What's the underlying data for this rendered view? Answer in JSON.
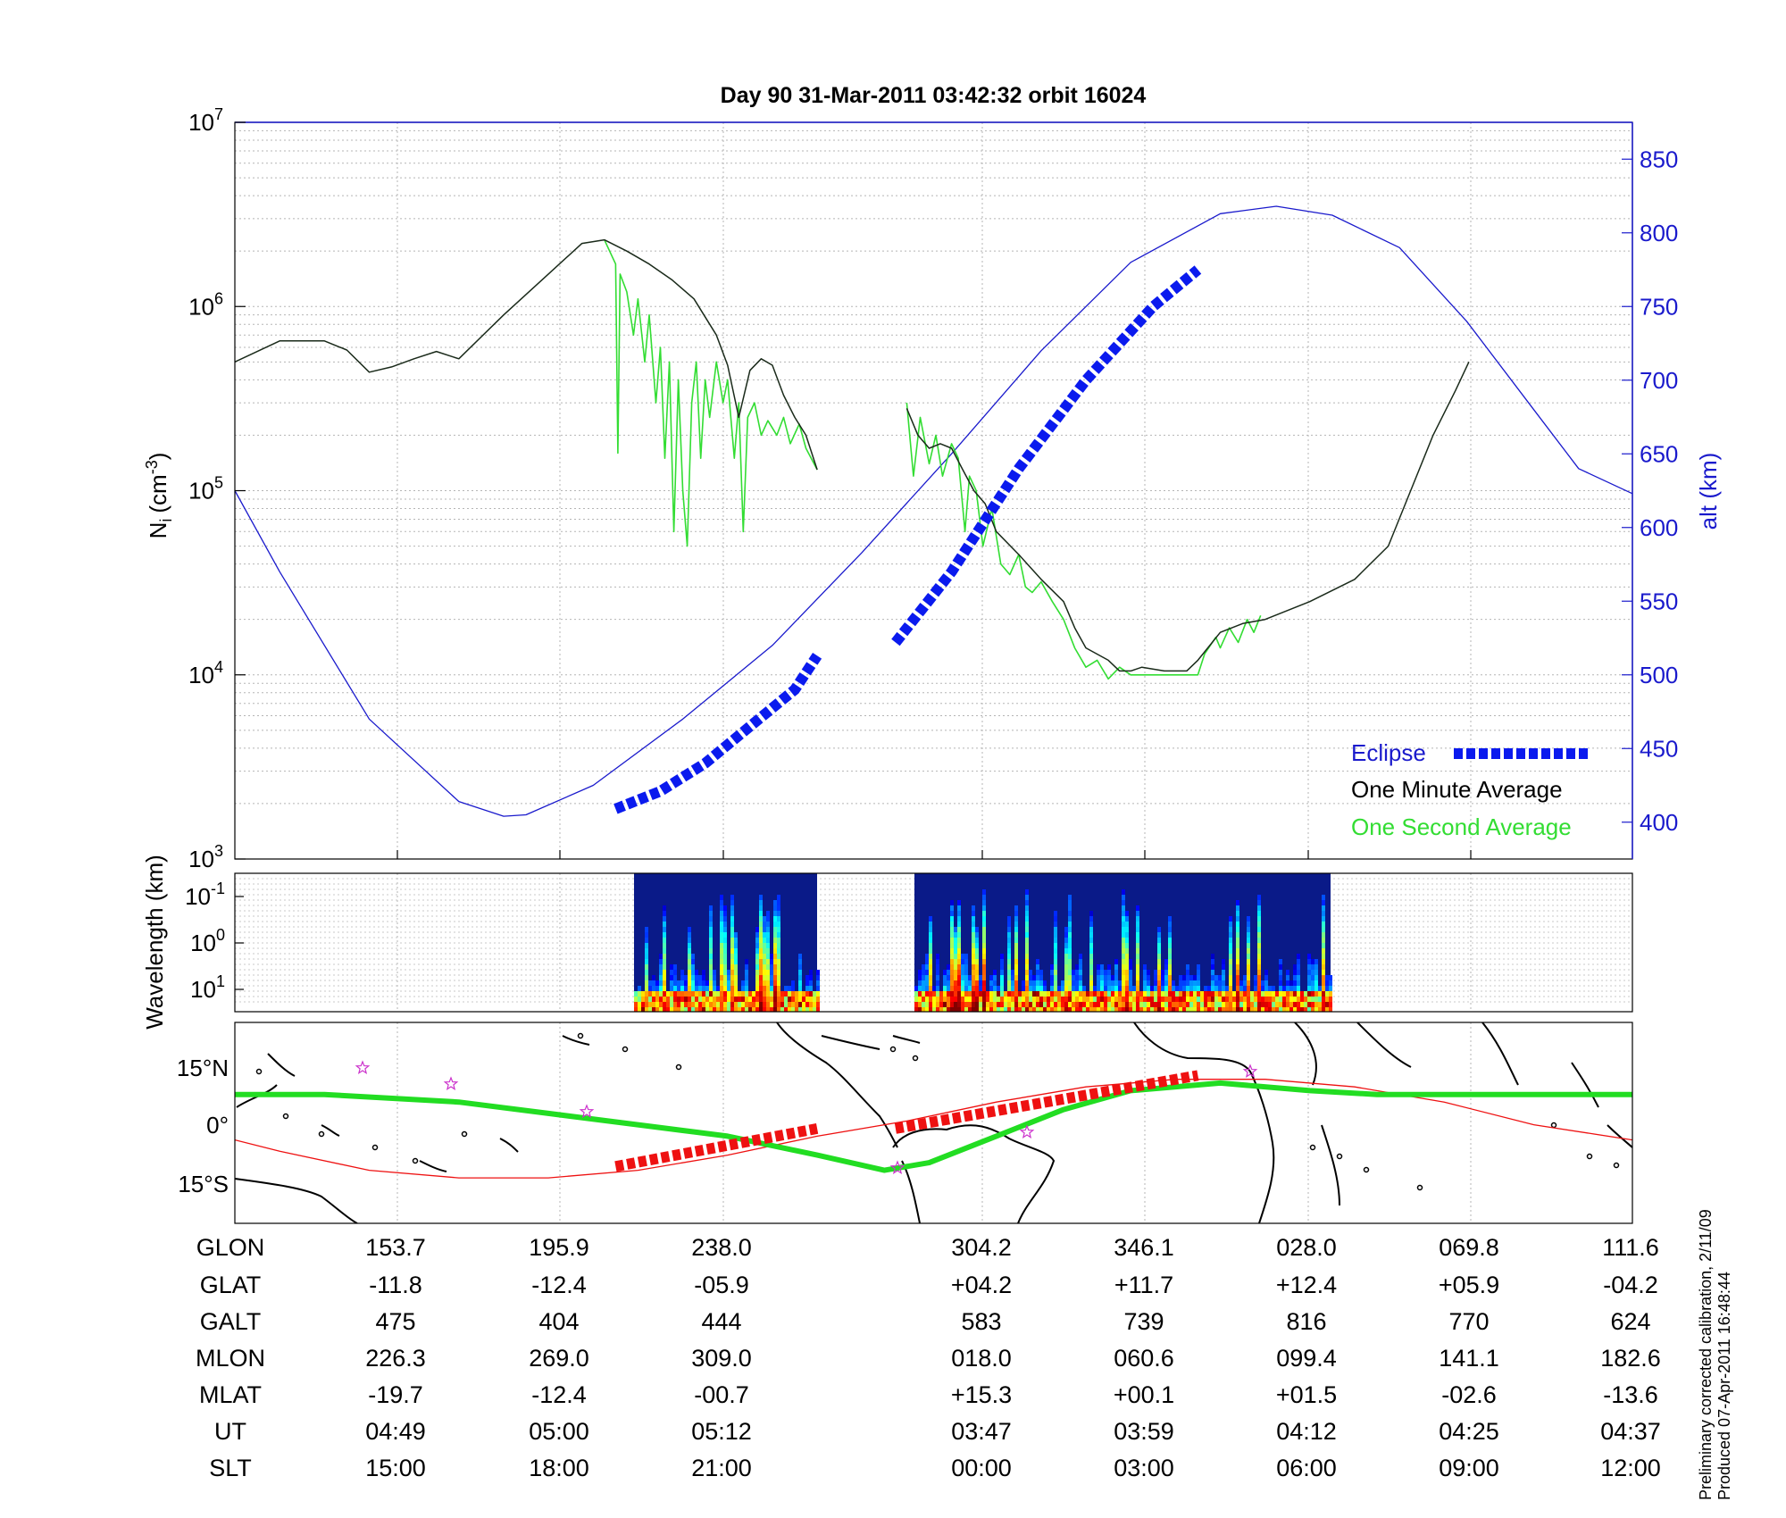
{
  "title": "Day 90  31-Mar-2011 03:42:32   orbit 16024",
  "ylabel_left_main": "N",
  "ylabel_left_sub": "i",
  "ylabel_left_unit": "(cm",
  "ylabel_left_exp": "-3",
  "ylabel_left_close": ")",
  "ylabel_right": "alt (km)",
  "spec_ylabel": "Wavelength (km)",
  "note_line1": "Preliminary corrected calibration, 2/11/09",
  "note_line2": "Produced 07-Apr-2011 16:48:44",
  "colors": {
    "alt": "#1a1acc",
    "eclipse": "#0a1aee",
    "minute": "#1a2a1a",
    "second": "#33dd33",
    "track_red": "#ee1111",
    "track_green": "#22dd22",
    "coast": "#000000",
    "star": "#cc33cc"
  },
  "legend": [
    {
      "label": "Eclipse",
      "color": "#1a1acc"
    },
    {
      "label": "One Minute Average",
      "color": "#000000"
    },
    {
      "label": "One Second Average",
      "color": "#33dd33"
    }
  ],
  "ni_ticks": [
    {
      "base": "10",
      "exp": "3"
    },
    {
      "base": "10",
      "exp": "4"
    },
    {
      "base": "10",
      "exp": "5"
    },
    {
      "base": "10",
      "exp": "6"
    },
    {
      "base": "10",
      "exp": "7"
    }
  ],
  "alt_ticks": [
    "400",
    "450",
    "500",
    "550",
    "600",
    "650",
    "700",
    "750",
    "800",
    "850"
  ],
  "wl_ticks": [
    {
      "base": "10",
      "exp": "-1"
    },
    {
      "base": "10",
      "exp": "0"
    },
    {
      "base": "10",
      "exp": "1"
    }
  ],
  "lat_ticks": [
    "15°N",
    "0°",
    "15°S"
  ],
  "chart_data": [
    {
      "type": "line",
      "name": "density_altitude",
      "x_range_min": [
        -20,
        520
      ],
      "ylim_left": [
        1000,
        10000000
      ],
      "yscale_left": "log",
      "ylim_right": [
        375,
        875
      ],
      "grid": true,
      "legend_position": "bottom-right",
      "series": [
        {
          "name": "One Minute Average",
          "axis": "left",
          "segments": [
            [
              [
                -20,
                500000
              ],
              [
                0,
                650000
              ],
              [
                20,
                650000
              ],
              [
                30,
                580000
              ],
              [
                40,
                440000
              ],
              [
                50,
                470000
              ],
              [
                60,
                520000
              ],
              [
                70,
                570000
              ],
              [
                80,
                520000
              ],
              [
                100,
                900000
              ],
              [
                120,
                1500000
              ],
              [
                135,
                2200000
              ],
              [
                145,
                2300000
              ],
              [
                155,
                2000000
              ],
              [
                165,
                1700000
              ],
              [
                175,
                1400000
              ],
              [
                185,
                1100000
              ],
              [
                195,
                700000
              ],
              [
                200,
                480000
              ],
              [
                205,
                250000
              ],
              [
                210,
                450000
              ],
              [
                215,
                520000
              ],
              [
                220,
                480000
              ],
              [
                225,
                330000
              ],
              [
                230,
                250000
              ],
              [
                235,
                200000
              ],
              [
                240,
                130000
              ]
            ],
            [
              [
                280,
                280000
              ],
              [
                285,
                200000
              ],
              [
                290,
                170000
              ],
              [
                295,
                180000
              ],
              [
                300,
                170000
              ],
              [
                305,
                130000
              ],
              [
                310,
                100000
              ],
              [
                315,
                85000
              ],
              [
                320,
                60000
              ],
              [
                330,
                45000
              ],
              [
                340,
                33000
              ],
              [
                350,
                25000
              ],
              [
                355,
                18000
              ],
              [
                360,
                14000
              ],
              [
                370,
                12000
              ],
              [
                375,
                10500
              ],
              [
                380,
                10500
              ],
              [
                385,
                11000
              ],
              [
                395,
                10500
              ],
              [
                405,
                10500
              ],
              [
                410,
                12000
              ],
              [
                420,
                17000
              ],
              [
                430,
                19000
              ],
              [
                440,
                20000
              ],
              [
                460,
                25000
              ],
              [
                480,
                33000
              ],
              [
                495,
                50000
              ],
              [
                505,
                100000
              ],
              [
                515,
                200000
              ],
              [
                525,
                350000
              ],
              [
                531,
                500000
              ]
            ]
          ]
        },
        {
          "name": "One Second Average",
          "axis": "left",
          "segments": [
            [
              [
                145,
                2300000
              ],
              [
                150,
                1700000
              ],
              [
                151,
                160000
              ],
              [
                152,
                1500000
              ],
              [
                155,
                1200000
              ],
              [
                158,
                700000
              ],
              [
                160,
                1100000
              ],
              [
                163,
                500000
              ],
              [
                165,
                900000
              ],
              [
                168,
                300000
              ],
              [
                170,
                600000
              ],
              [
                172,
                150000
              ],
              [
                174,
                500000
              ],
              [
                176,
                60000
              ],
              [
                178,
                400000
              ],
              [
                180,
                100000
              ],
              [
                182,
                50000
              ],
              [
                184,
                300000
              ],
              [
                186,
                500000
              ],
              [
                188,
                150000
              ],
              [
                190,
                400000
              ],
              [
                192,
                250000
              ],
              [
                195,
                500000
              ],
              [
                198,
                300000
              ],
              [
                200,
                400000
              ],
              [
                203,
                150000
              ],
              [
                205,
                300000
              ],
              [
                207,
                60000
              ],
              [
                209,
                250000
              ],
              [
                212,
                300000
              ],
              [
                215,
                200000
              ],
              [
                218,
                240000
              ],
              [
                222,
                200000
              ],
              [
                225,
                250000
              ],
              [
                228,
                180000
              ],
              [
                232,
                230000
              ],
              [
                235,
                170000
              ],
              [
                240,
                130000
              ]
            ],
            [
              [
                280,
                300000
              ],
              [
                283,
                120000
              ],
              [
                286,
                250000
              ],
              [
                290,
                140000
              ],
              [
                293,
                200000
              ],
              [
                296,
                120000
              ],
              [
                300,
                180000
              ],
              [
                303,
                150000
              ],
              [
                306,
                60000
              ],
              [
                308,
                120000
              ],
              [
                311,
                100000
              ],
              [
                314,
                50000
              ],
              [
                318,
                80000
              ],
              [
                322,
                40000
              ],
              [
                326,
                35000
              ],
              [
                330,
                45000
              ],
              [
                333,
                30000
              ],
              [
                336,
                28000
              ],
              [
                340,
                32000
              ],
              [
                345,
                25000
              ],
              [
                350,
                20000
              ],
              [
                355,
                14000
              ],
              [
                360,
                11000
              ],
              [
                365,
                12000
              ],
              [
                370,
                9500
              ],
              [
                375,
                11000
              ],
              [
                380,
                10000
              ],
              [
                410,
                10000
              ],
              [
                413,
                13000
              ],
              [
                418,
                16000
              ],
              [
                420,
                14000
              ],
              [
                424,
                18000
              ],
              [
                428,
                15000
              ],
              [
                432,
                20000
              ],
              [
                435,
                17000
              ],
              [
                438,
                21000
              ]
            ]
          ]
        },
        {
          "name": "alt",
          "axis": "right",
          "segments": [
            [
              [
                -20,
                625
              ],
              [
                0,
                570
              ],
              [
                40,
                470
              ],
              [
                80,
                414
              ],
              [
                100,
                404
              ],
              [
                110,
                405
              ],
              [
                140,
                425
              ],
              [
                180,
                470
              ],
              [
                220,
                520
              ],
              [
                260,
                583
              ],
              [
                300,
                650
              ],
              [
                340,
                720
              ],
              [
                380,
                780
              ],
              [
                420,
                813
              ],
              [
                445,
                818
              ],
              [
                470,
                812
              ],
              [
                500,
                790
              ],
              [
                530,
                740
              ],
              [
                560,
                680
              ],
              [
                580,
                640
              ],
              [
                604,
                623
              ]
            ]
          ]
        },
        {
          "name": "Eclipse",
          "axis": "right",
          "segments": [
            [
              [
                150,
                409
              ],
              [
                170,
                421
              ],
              [
                190,
                440
              ],
              [
                210,
                465
              ],
              [
                230,
                490
              ],
              [
                240,
                513
              ]
            ],
            [
              [
                275,
                522
              ],
              [
                300,
                570
              ],
              [
                330,
                640
              ],
              [
                360,
                700
              ],
              [
                390,
                750
              ],
              [
                410,
                775
              ]
            ]
          ]
        }
      ]
    },
    {
      "type": "heatmap",
      "name": "spectrogram",
      "ylabel": "Wavelength (km)",
      "yscale": "log",
      "segments_x_px": "see script",
      "colormap": "jet"
    },
    {
      "type": "line",
      "name": "ground_track",
      "ylim": [
        -25,
        28
      ],
      "series": [
        {
          "name": "track",
          "color": "red",
          "points": [
            [
              -20,
              -3
            ],
            [
              0,
              -6
            ],
            [
              40,
              -11
            ],
            [
              80,
              -13
            ],
            [
              120,
              -13
            ],
            [
              160,
              -11
            ],
            [
              200,
              -7
            ],
            [
              240,
              -2
            ],
            [
              280,
              2
            ],
            [
              320,
              7
            ],
            [
              360,
              11
            ],
            [
              400,
              13
            ],
            [
              440,
              13
            ],
            [
              480,
              11
            ],
            [
              520,
              7
            ],
            [
              560,
              1
            ],
            [
              604,
              -3
            ]
          ]
        },
        {
          "name": "field",
          "color": "green",
          "points": [
            [
              -20,
              9
            ],
            [
              20,
              9
            ],
            [
              80,
              7
            ],
            [
              120,
              4
            ],
            [
              160,
              1
            ],
            [
              200,
              -2
            ],
            [
              240,
              -7
            ],
            [
              270,
              -11
            ],
            [
              290,
              -9
            ],
            [
              320,
              -2
            ],
            [
              350,
              5
            ],
            [
              380,
              10
            ],
            [
              420,
              12
            ],
            [
              460,
              10
            ],
            [
              490,
              9
            ],
            [
              520,
              9
            ],
            [
              560,
              9
            ],
            [
              604,
              9
            ]
          ]
        },
        {
          "name": "eclipse_track",
          "color": "red-thick",
          "segments": [
            [
              [
                150,
                -10
              ],
              [
                240,
                0
              ]
            ],
            [
              [
                275,
                0
              ],
              [
                410,
                14
              ]
            ]
          ]
        }
      ]
    }
  ],
  "table": {
    "row_labels": [
      "GLON",
      "GLAT",
      "GALT",
      "MLON",
      "MLAT",
      "UT",
      "SLT"
    ],
    "columns": [
      [
        "153.7",
        "-11.8",
        "475",
        "226.3",
        "-19.7",
        "04:49",
        "15:00"
      ],
      [
        "195.9",
        "-12.4",
        "404",
        "269.0",
        "-12.4",
        "05:00",
        "18:00"
      ],
      [
        "238.0",
        "-05.9",
        "444",
        "309.0",
        "-00.7",
        "05:12",
        "21:00"
      ],
      [
        "304.2",
        "+04.2",
        "583",
        "018.0",
        "+15.3",
        "03:47",
        "00:00"
      ],
      [
        "346.1",
        "+11.7",
        "739",
        "060.6",
        "+00.1",
        "03:59",
        "03:00"
      ],
      [
        "028.0",
        "+12.4",
        "816",
        "099.4",
        "+01.5",
        "04:12",
        "06:00"
      ],
      [
        "069.8",
        "+05.9",
        "770",
        "141.1",
        "-02.6",
        "04:25",
        "09:00"
      ],
      [
        "111.6",
        "-04.2",
        "624",
        "182.6",
        "-13.6",
        "04:37",
        "12:00"
      ]
    ]
  }
}
